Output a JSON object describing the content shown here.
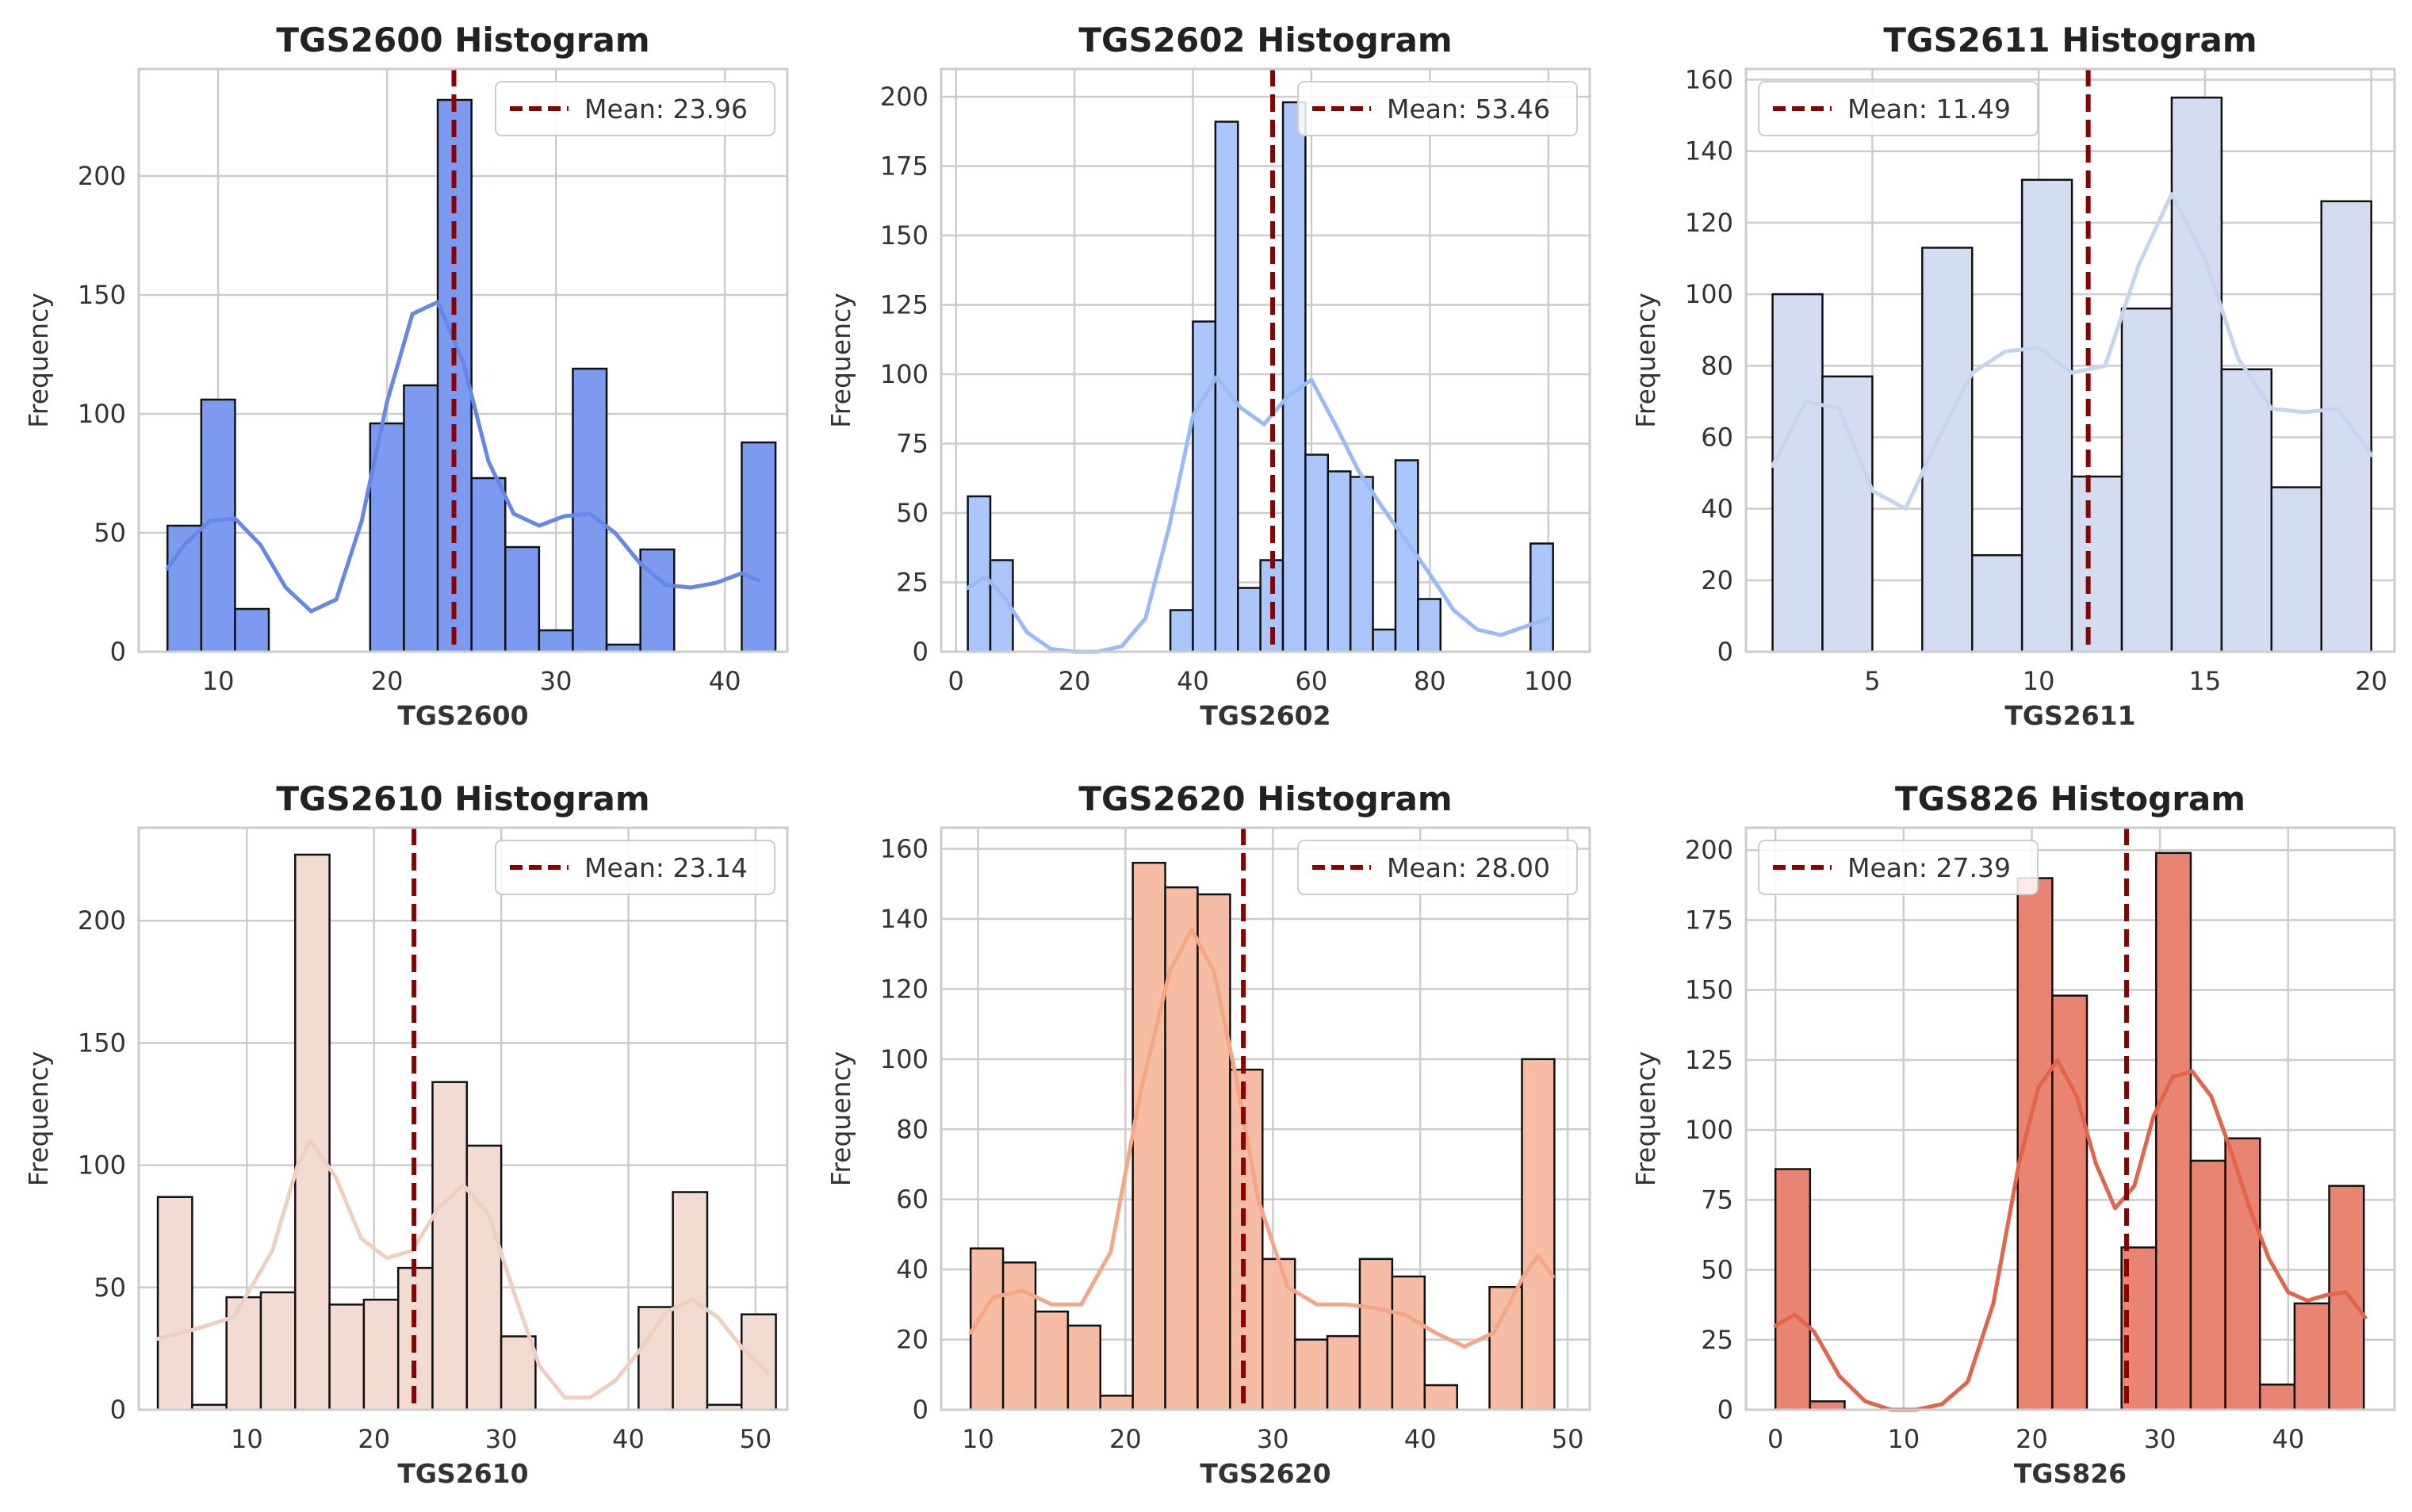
{
  "chart_data": [
    {
      "type": "bar",
      "title": "TGS2600 Histogram",
      "xlabel": "TGS2600",
      "ylabel": "Frequency",
      "xlim": [
        5.3,
        43.7
      ],
      "ylim": [
        0,
        245
      ],
      "xticks": [
        10,
        20,
        30,
        40
      ],
      "yticks": [
        0,
        50,
        100,
        150,
        200
      ],
      "bin_edges": [
        7,
        9,
        11,
        13,
        15,
        17,
        19,
        21,
        23,
        25,
        27,
        29,
        31,
        33,
        35,
        37,
        39,
        41,
        43
      ],
      "values": [
        53,
        106,
        18,
        0,
        0,
        0,
        96,
        112,
        232,
        73,
        44,
        9,
        119,
        3,
        43,
        0,
        0,
        88
      ],
      "kde_x": [
        7,
        8,
        9.5,
        11,
        12.5,
        14,
        15.5,
        17,
        18.5,
        20,
        21.5,
        23,
        24.5,
        26,
        27.5,
        29,
        30.5,
        32,
        33.5,
        35,
        36.5,
        38,
        39.5,
        41,
        42
      ],
      "kde_y": [
        35,
        45,
        55,
        56,
        45,
        27,
        17,
        22,
        55,
        105,
        142,
        147,
        122,
        80,
        58,
        53,
        57,
        58,
        50,
        37,
        28,
        27,
        29,
        33,
        30
      ],
      "mean": 23.96,
      "mean_label": "Mean: 23.96",
      "legend": "top-right",
      "bar_color": "#7b9af0",
      "kde_color": "#6587e6",
      "grid": true
    },
    {
      "type": "bar",
      "title": "TGS2602 Histogram",
      "xlabel": "TGS2602",
      "ylabel": "Frequency",
      "xlim": [
        -2.5,
        107
      ],
      "ylim": [
        0,
        210
      ],
      "xticks": [
        0,
        20,
        40,
        60,
        80,
        100
      ],
      "yticks": [
        0,
        25,
        50,
        75,
        100,
        125,
        150,
        175,
        200
      ],
      "bin_edges": [
        2,
        5.8,
        9.6,
        13.4,
        17.2,
        21,
        24.8,
        28.6,
        32.4,
        36.2,
        40,
        43.8,
        47.6,
        51.4,
        55.2,
        59,
        62.8,
        66.6,
        70.4,
        74.2,
        78,
        81.8,
        85.6,
        89.4,
        93.2,
        97,
        100.8
      ],
      "values": [
        56,
        33,
        0,
        0,
        0,
        0,
        0,
        0,
        0,
        15,
        119,
        191,
        23,
        33,
        198,
        71,
        65,
        63,
        8,
        69,
        19,
        0,
        0,
        0,
        0,
        39
      ],
      "kde_x": [
        2,
        5,
        8,
        12,
        16,
        20,
        24,
        28,
        32,
        36,
        40,
        44,
        48,
        52,
        56,
        60,
        64,
        68,
        72,
        76,
        80,
        84,
        88,
        92,
        96,
        100
      ],
      "kde_y": [
        23,
        27,
        20,
        7,
        1,
        0,
        0,
        2,
        12,
        45,
        85,
        99,
        88,
        82,
        92,
        98,
        82,
        65,
        52,
        40,
        28,
        15,
        8,
        6,
        9,
        12
      ],
      "mean": 53.46,
      "mean_label": "Mean: 53.46",
      "legend": "top-right",
      "bar_color": "#aac6fb",
      "kde_color": "#9ab9f5",
      "grid": true
    },
    {
      "type": "bar",
      "title": "TGS2611 Histogram",
      "xlabel": "TGS2611",
      "ylabel": "Frequency",
      "xlim": [
        1.2,
        20.7
      ],
      "ylim": [
        0,
        163
      ],
      "xticks": [
        5,
        10,
        15,
        20
      ],
      "yticks": [
        0,
        20,
        40,
        60,
        80,
        100,
        120,
        140,
        160
      ],
      "bin_edges": [
        2,
        3.5,
        5,
        6.5,
        8,
        9.5,
        11,
        12.5,
        14,
        15.5,
        17,
        18.5,
        20
      ],
      "values": [
        100,
        77,
        0,
        113,
        27,
        132,
        49,
        96,
        155,
        79,
        46,
        126
      ],
      "kde_x": [
        2,
        3,
        4,
        5,
        6,
        7,
        8,
        9,
        10,
        11,
        12,
        13,
        14,
        15,
        16,
        17,
        18,
        19,
        20
      ],
      "kde_y": [
        52,
        70,
        68,
        45,
        40,
        60,
        78,
        84,
        85,
        78,
        80,
        108,
        128,
        110,
        82,
        68,
        67,
        68,
        55
      ],
      "mean": 11.49,
      "mean_label": "Mean: 11.49",
      "legend": "top-left",
      "bar_color": "#d3dcf1",
      "kde_color": "#c6d5ee",
      "grid": true
    },
    {
      "type": "bar",
      "title": "TGS2610 Histogram",
      "xlabel": "TGS2610",
      "ylabel": "Frequency",
      "xlim": [
        1.5,
        52.5
      ],
      "ylim": [
        0,
        238
      ],
      "xticks": [
        10,
        20,
        30,
        40,
        50
      ],
      "yticks": [
        0,
        50,
        100,
        150,
        200
      ],
      "bin_edges": [
        3,
        5.7,
        8.4,
        11.1,
        13.8,
        16.5,
        19.2,
        21.9,
        24.6,
        27.3,
        30,
        32.7,
        35.4,
        38.1,
        40.8,
        43.5,
        46.2,
        48.9,
        51.6
      ],
      "values": [
        87,
        2,
        46,
        48,
        227,
        43,
        45,
        58,
        134,
        108,
        30,
        0,
        0,
        0,
        42,
        89,
        2,
        39
      ],
      "kde_x": [
        3,
        6,
        9,
        12,
        14,
        15,
        17,
        19,
        21,
        23,
        25,
        27,
        29,
        31,
        33,
        35,
        37,
        39,
        41,
        43,
        45,
        47,
        49,
        51
      ],
      "kde_y": [
        29,
        33,
        38,
        65,
        100,
        110,
        95,
        70,
        62,
        65,
        82,
        92,
        80,
        48,
        18,
        5,
        5,
        12,
        25,
        40,
        45,
        38,
        25,
        15
      ],
      "mean": 23.14,
      "mean_label": "Mean: 23.14",
      "legend": "top-right",
      "bar_color": "#f2dcd2",
      "kde_color": "#eed0c0",
      "grid": true
    },
    {
      "type": "bar",
      "title": "TGS2620 Histogram",
      "xlabel": "TGS2620",
      "ylabel": "Frequency",
      "xlim": [
        7.5,
        51.5
      ],
      "ylim": [
        0,
        166
      ],
      "xticks": [
        10,
        20,
        30,
        40,
        50
      ],
      "yticks": [
        0,
        20,
        40,
        60,
        80,
        100,
        120,
        140,
        160
      ],
      "bin_edges": [
        9.5,
        11.7,
        13.9,
        16.1,
        18.3,
        20.5,
        22.7,
        24.9,
        27.1,
        29.3,
        31.5,
        33.7,
        35.9,
        38.1,
        40.3,
        42.5,
        44.7,
        46.9,
        49.1
      ],
      "values": [
        46,
        42,
        28,
        24,
        4,
        156,
        149,
        147,
        97,
        43,
        20,
        21,
        43,
        38,
        7,
        0,
        35,
        100
      ],
      "kde_x": [
        9.5,
        11,
        13,
        15,
        17,
        19,
        21,
        23,
        24.5,
        26,
        27.5,
        29,
        31,
        33,
        35,
        37,
        39,
        41,
        43,
        45,
        47,
        48,
        49
      ],
      "kde_y": [
        22,
        32,
        34,
        30,
        30,
        45,
        90,
        125,
        137,
        125,
        95,
        60,
        35,
        30,
        30,
        29,
        27,
        22,
        18,
        22,
        38,
        44,
        38
      ],
      "mean": 28.0,
      "mean_label": "Mean: 28.00",
      "legend": "top-right",
      "bar_color": "#f7bda4",
      "kde_color": "#f3a786",
      "grid": true
    },
    {
      "type": "bar",
      "title": "TGS826 Histogram",
      "xlabel": "TGS826",
      "ylabel": "Frequency",
      "xlim": [
        -2.3,
        48.3
      ],
      "ylim": [
        0,
        208
      ],
      "xticks": [
        0,
        10,
        20,
        30,
        40
      ],
      "yticks": [
        0,
        25,
        50,
        75,
        100,
        125,
        150,
        175,
        200
      ],
      "bin_edges": [
        0,
        2.7,
        5.4,
        8.1,
        10.8,
        13.5,
        16.2,
        18.9,
        21.6,
        24.3,
        27,
        29.7,
        32.4,
        35.1,
        37.8,
        40.5,
        43.2,
        45.9
      ],
      "values": [
        86,
        3,
        0,
        0,
        0,
        0,
        0,
        190,
        148,
        0,
        58,
        199,
        89,
        97,
        9,
        38,
        80
      ],
      "kde_x": [
        0,
        1.5,
        3,
        5,
        7,
        9,
        11,
        13,
        15,
        17,
        19,
        20.5,
        22,
        23.5,
        25,
        26.5,
        28,
        29.5,
        31,
        32.5,
        34,
        35.5,
        37,
        38.5,
        40,
        41.5,
        43,
        44.5,
        46
      ],
      "kde_y": [
        30,
        34,
        28,
        12,
        3,
        0,
        0,
        2,
        10,
        38,
        88,
        115,
        125,
        112,
        88,
        72,
        80,
        105,
        119,
        121,
        112,
        93,
        72,
        54,
        42,
        39,
        41,
        42,
        33
      ],
      "mean": 27.39,
      "mean_label": "Mean: 27.39",
      "legend": "top-left",
      "bar_color": "#e88471",
      "kde_color": "#e1654b",
      "grid": true
    }
  ]
}
